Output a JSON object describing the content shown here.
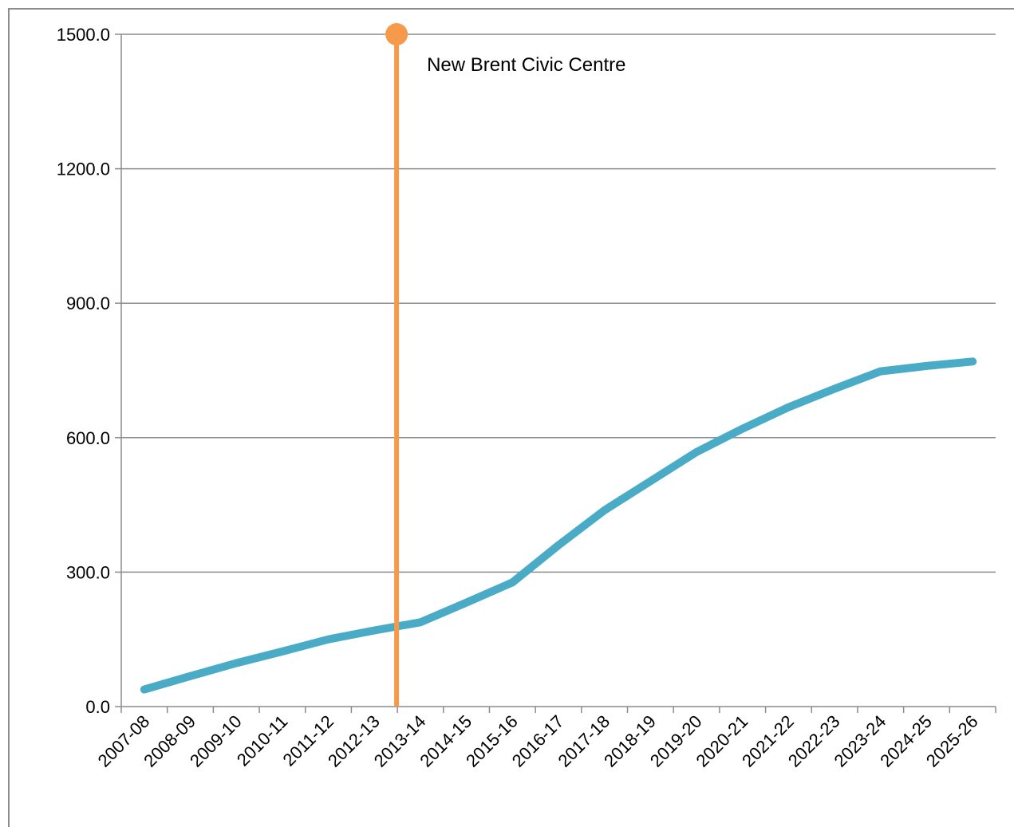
{
  "chart_data": {
    "type": "line",
    "categories": [
      "2007-08",
      "2008-09",
      "2009-10",
      "2010-11",
      "2011-12",
      "2012-13",
      "2013-14",
      "2014-15",
      "2015-16",
      "2016-17",
      "2017-18",
      "2018-19",
      "2019-20",
      "2020-21",
      "2021-22",
      "2022-23",
      "2023-24",
      "2024-25",
      "2025-26"
    ],
    "series": [
      {
        "values": [
          38,
          68,
          97,
          123,
          150,
          170,
          188,
          232,
          277,
          360,
          438,
          503,
          568,
          620,
          668,
          709,
          748,
          760,
          770
        ],
        "color": "#4aabc6"
      }
    ],
    "yticks": [
      "0.0",
      "300.0",
      "600.0",
      "900.0",
      "1200.0",
      "1500.0"
    ],
    "ylim": [
      0,
      1500
    ],
    "grid": true,
    "marker_line": {
      "label": "New Brent Civic Centre",
      "category_position": "between 2012-13 and 2013-14",
      "color": "#f7994a"
    }
  }
}
